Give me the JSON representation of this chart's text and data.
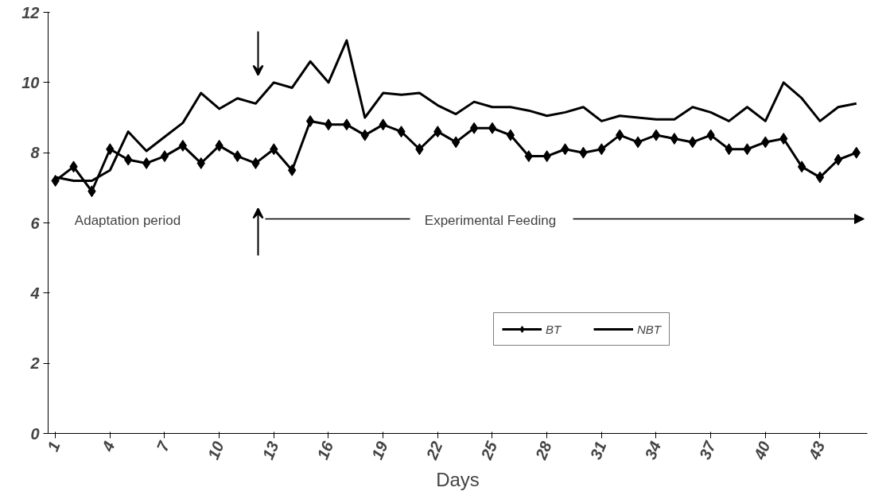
{
  "chart_data": {
    "type": "line",
    "xlabel": "Days",
    "x": [
      1,
      2,
      3,
      4,
      5,
      6,
      7,
      8,
      9,
      10,
      11,
      12,
      13,
      14,
      15,
      16,
      17,
      18,
      19,
      20,
      21,
      22,
      23,
      24,
      25,
      26,
      27,
      28,
      29,
      30,
      31,
      32,
      33,
      34,
      35,
      36,
      37,
      38,
      39,
      40,
      41,
      42,
      43,
      44,
      45
    ],
    "series": [
      {
        "name": "BT",
        "color": "#000000",
        "marker": "diamond",
        "values": [
          7.2,
          7.6,
          6.9,
          8.1,
          7.8,
          7.7,
          7.9,
          8.2,
          7.7,
          8.2,
          7.9,
          7.7,
          8.1,
          7.5,
          8.9,
          8.8,
          8.8,
          8.5,
          8.8,
          8.6,
          8.1,
          8.6,
          8.3,
          8.7,
          8.7,
          8.5,
          7.9,
          7.9,
          8.1,
          8.0,
          8.1,
          8.5,
          8.3,
          8.5,
          8.4,
          8.3,
          8.5,
          8.1,
          8.1,
          8.3,
          8.4,
          7.6,
          7.3,
          7.8,
          8.0
        ]
      },
      {
        "name": "NBT",
        "color": "#000000",
        "marker": "none",
        "values": [
          7.3,
          7.2,
          7.2,
          7.5,
          8.6,
          8.05,
          8.45,
          8.85,
          9.7,
          9.25,
          9.55,
          9.4,
          10.0,
          9.85,
          10.6,
          10.0,
          11.2,
          9.0,
          9.7,
          9.65,
          9.7,
          9.35,
          9.1,
          9.45,
          9.3,
          9.3,
          9.2,
          9.05,
          9.15,
          9.3,
          8.9,
          9.05,
          9.0,
          8.95,
          8.95,
          9.3,
          9.15,
          8.9,
          9.3,
          8.9,
          10.0,
          9.55,
          8.9,
          9.3,
          9.4
        ]
      }
    ],
    "xlim": [
      0.6,
      45.6
    ],
    "xticks": [
      1,
      4,
      7,
      10,
      13,
      16,
      19,
      22,
      25,
      28,
      31,
      34,
      37,
      40,
      43
    ],
    "ylim": [
      0,
      12
    ],
    "yticks": [
      0,
      2,
      4,
      6,
      8,
      10,
      12
    ],
    "grid": false,
    "legend": "bottom right",
    "line_style": "solid",
    "annotations": [
      "Adaptation period",
      "Experimental Feeding"
    ]
  }
}
